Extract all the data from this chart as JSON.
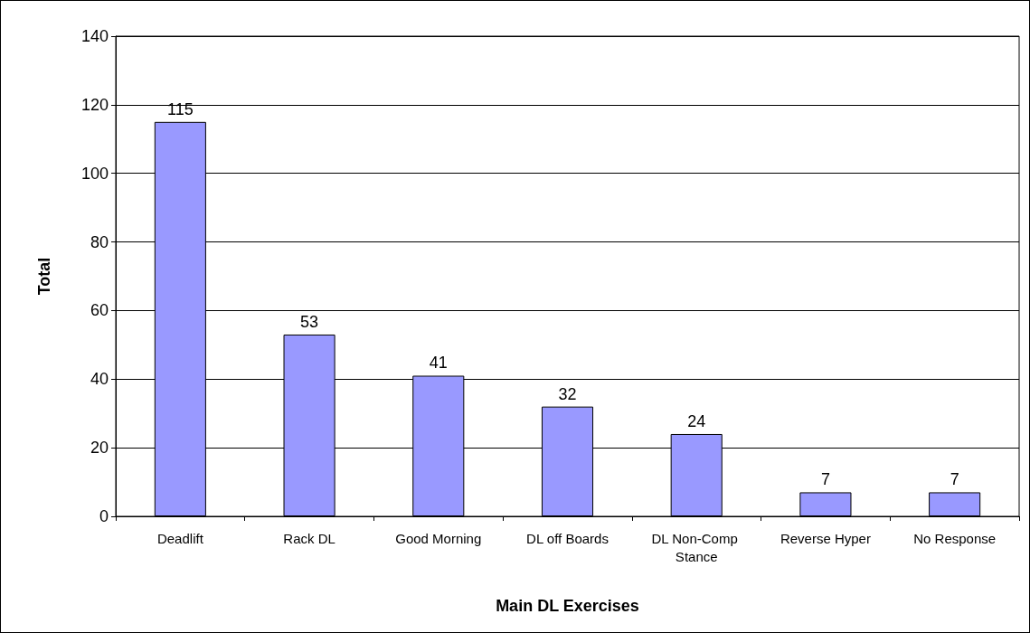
{
  "chart_data": {
    "type": "bar",
    "xlabel": "Main DL Exercises",
    "ylabel": "Total",
    "categories": [
      "Deadlift",
      "Rack DL",
      "Good Morning",
      "DL off Boards",
      "DL Non-Comp Stance",
      "Reverse Hyper",
      "No Response"
    ],
    "values": [
      115,
      53,
      41,
      32,
      24,
      7,
      7
    ],
    "color": "#9999ff",
    "ylim": [
      0,
      140
    ],
    "yticks": [
      0,
      20,
      40,
      60,
      80,
      100,
      120,
      140
    ],
    "grid": "y",
    "data_labels": true
  }
}
